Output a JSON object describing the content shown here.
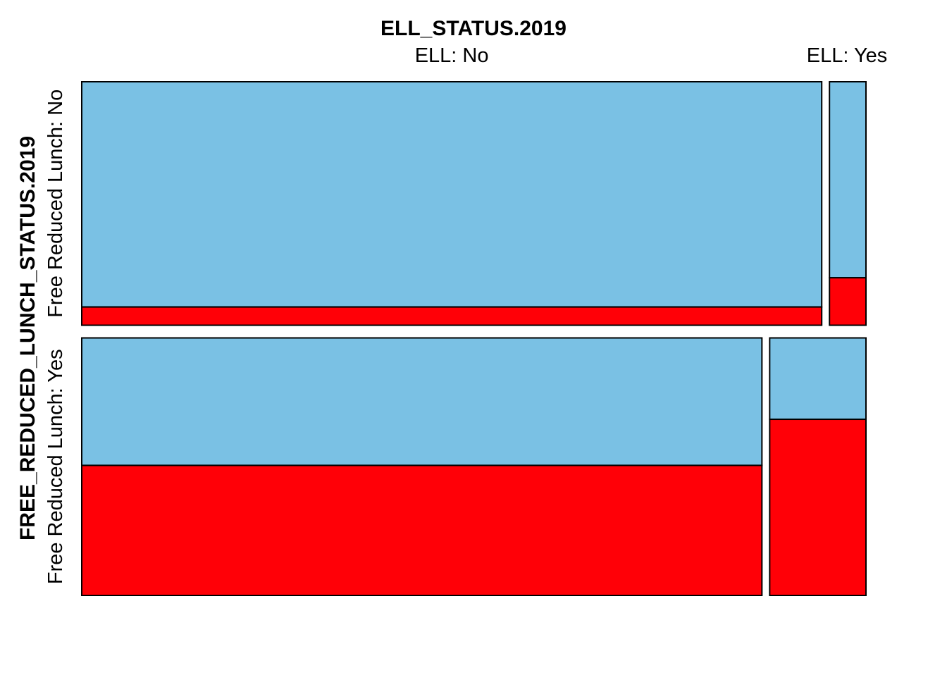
{
  "chart_data": {
    "type": "mosaic",
    "title": "ELL_STATUS.2019",
    "ylabel": "FREE_REDUCED_LUNCH_STATUS.2019",
    "x_categories": [
      "ELL: No",
      "ELL: Yes"
    ],
    "y_categories": [
      "Free Reduced Lunch: No",
      "Free Reduced Lunch: Yes"
    ],
    "fill_colors": {
      "upper": "#7AC1E4",
      "lower": "#FF0007"
    },
    "stroke_color": "#000000",
    "row_shares": [
      0.486,
      0.514
    ],
    "cells": [
      {
        "row": 0,
        "col": 0,
        "col_share": 0.953,
        "lower_share": 0.075
      },
      {
        "row": 0,
        "col": 1,
        "col_share": 0.047,
        "lower_share": 0.195
      },
      {
        "row": 1,
        "col": 0,
        "col_share": 0.876,
        "lower_share": 0.505
      },
      {
        "row": 1,
        "col": 1,
        "col_share": 0.124,
        "lower_share": 0.684
      }
    ]
  }
}
